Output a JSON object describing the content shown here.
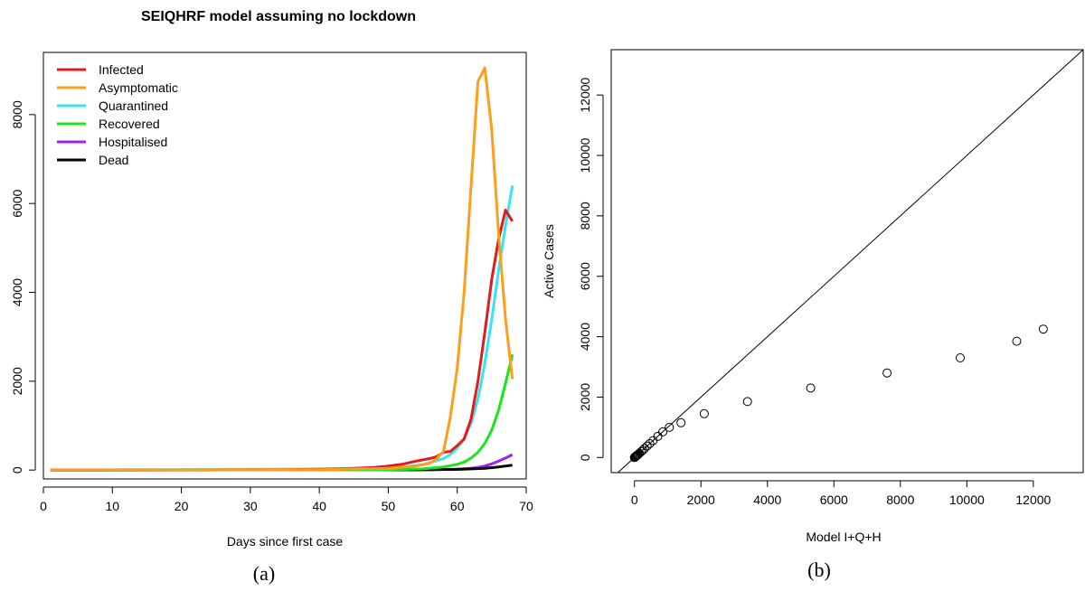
{
  "chart_data": [
    {
      "id": "a",
      "type": "line",
      "title": "SEIQHRF model assuming no lockdown",
      "xlabel": "Days since first case",
      "ylabel": "",
      "caption": "(a)",
      "xlim": [
        0,
        70
      ],
      "ylim": [
        -200,
        9400
      ],
      "xticks": [
        "0",
        "10",
        "20",
        "30",
        "40",
        "50",
        "60",
        "70"
      ],
      "yticks": [
        "0",
        "2000",
        "4000",
        "6000",
        "8000"
      ],
      "legend_position": "top-left",
      "series": [
        {
          "name": "Infected",
          "color": "#e41a1c",
          "x": [
            1,
            30,
            35,
            40,
            45,
            48,
            50,
            52,
            54,
            56,
            57,
            58,
            59,
            60,
            61,
            62,
            63,
            64,
            65,
            66,
            67,
            68
          ],
          "y": [
            0,
            5,
            10,
            20,
            40,
            60,
            90,
            130,
            200,
            260,
            300,
            400,
            420,
            550,
            700,
            1150,
            2000,
            3100,
            4300,
            5200,
            5850,
            5600
          ]
        },
        {
          "name": "Asymptomatic",
          "color": "#ff9e1b",
          "x": [
            1,
            40,
            50,
            54,
            56,
            57,
            58,
            59,
            60,
            61,
            62,
            63,
            64,
            65,
            66,
            67,
            68
          ],
          "y": [
            0,
            10,
            40,
            90,
            150,
            250,
            420,
            1200,
            2300,
            4000,
            6400,
            8750,
            9050,
            7650,
            5300,
            3400,
            2050
          ]
        },
        {
          "name": "Quarantined",
          "color": "#33e6f2",
          "x": [
            1,
            50,
            55,
            58,
            59,
            60,
            61,
            62,
            63,
            64,
            65,
            66,
            67,
            68
          ],
          "y": [
            0,
            30,
            120,
            260,
            350,
            500,
            700,
            1050,
            1600,
            2400,
            3400,
            4500,
            5500,
            6400
          ]
        },
        {
          "name": "Recovered",
          "color": "#19e619",
          "x": [
            1,
            50,
            55,
            58,
            60,
            61,
            62,
            63,
            64,
            65,
            66,
            67,
            68
          ],
          "y": [
            0,
            5,
            25,
            70,
            130,
            180,
            270,
            400,
            600,
            900,
            1350,
            1950,
            2600
          ]
        },
        {
          "name": "Hospitalised",
          "color": "#a020f0",
          "x": [
            1,
            55,
            60,
            62,
            63,
            64,
            65,
            66,
            67,
            68
          ],
          "y": [
            0,
            5,
            20,
            40,
            60,
            90,
            140,
            200,
            270,
            350
          ]
        },
        {
          "name": "Dead",
          "color": "#000000",
          "x": [
            1,
            55,
            60,
            62,
            64,
            65,
            66,
            67,
            68
          ],
          "y": [
            0,
            5,
            15,
            25,
            40,
            55,
            70,
            90,
            110
          ]
        }
      ]
    },
    {
      "id": "b",
      "type": "scatter",
      "title": "",
      "xlabel": "Model I+Q+H",
      "ylabel": "Active Cases",
      "caption": "(b)",
      "xlim": [
        -700,
        13500
      ],
      "ylim": [
        -500,
        13500
      ],
      "xticks": [
        "0",
        "2000",
        "4000",
        "6000",
        "8000",
        "10000",
        "12000"
      ],
      "yticks": [
        "0",
        "2000",
        "4000",
        "6000",
        "8000",
        "10000",
        "12000"
      ],
      "reference_line": "y = x",
      "points": {
        "x": [
          0,
          5,
          10,
          15,
          20,
          30,
          40,
          60,
          80,
          100,
          120,
          150,
          200,
          250,
          300,
          380,
          460,
          560,
          700,
          850,
          1050,
          1400,
          2100,
          3400,
          5300,
          7600,
          9800,
          11500,
          12300
        ],
        "y": [
          0,
          5,
          10,
          15,
          20,
          30,
          40,
          55,
          70,
          90,
          110,
          140,
          190,
          240,
          300,
          380,
          460,
          560,
          700,
          850,
          1000,
          1150,
          1450,
          1850,
          2300,
          2800,
          3300,
          3850,
          4250
        ]
      }
    }
  ]
}
